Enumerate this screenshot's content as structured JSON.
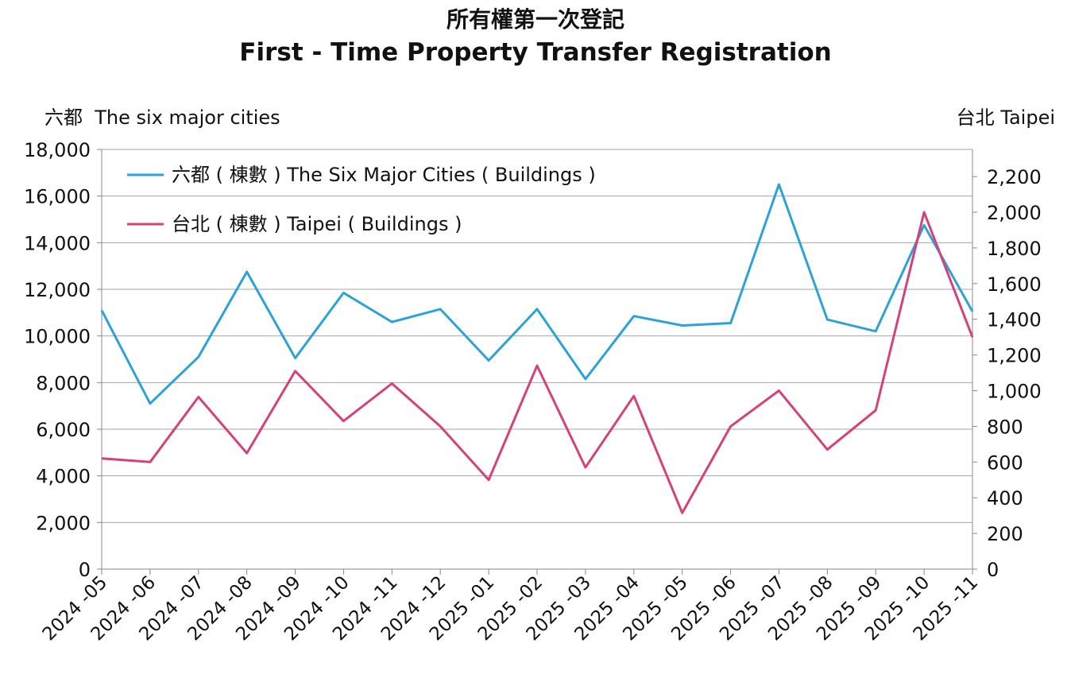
{
  "chart_data": {
    "type": "line",
    "title": "所有權第一次登記",
    "subtitle": "First - Time Property Transfer Registration",
    "left_axis_label": "六都  The six major cities",
    "right_axis_label": "台北 Taipei",
    "x": [
      "2024 -05",
      "2024 -06",
      "2024 -07",
      "2024 -08",
      "2024 -09",
      "2024 -10",
      "2024 -11",
      "2024 -12",
      "2025 -01",
      "2025 -02",
      "2025 -03",
      "2025 -04",
      "2025 -05",
      "2025 -06",
      "2025 -07",
      "2025 -08",
      "2025 -09",
      "2025 -10",
      "2025 -11"
    ],
    "left_ylim": [
      0,
      18000
    ],
    "left_ticks": [
      0,
      2000,
      4000,
      6000,
      8000,
      10000,
      12000,
      14000,
      16000,
      18000
    ],
    "left_tick_labels": [
      "0",
      "2,000",
      "4,000",
      "6,000",
      "8,000",
      "10,000",
      "12,000",
      "14,000",
      "16,000",
      "18,000"
    ],
    "right_ylim": [
      0,
      2352
    ],
    "right_ticks": [
      0,
      200,
      400,
      600,
      800,
      1000,
      1200,
      1400,
      1600,
      1800,
      2000,
      2200
    ],
    "right_tick_labels": [
      "0",
      "200",
      "400",
      "600",
      "800",
      "1,000",
      "1,200",
      "1,400",
      "1,600",
      "1,800",
      "2,000",
      "2,200"
    ],
    "grid": true,
    "legend_position": "top-left",
    "series": [
      {
        "name": "六都 ( 棟數 ) The Six Major Cities ( Buildings )",
        "axis": "left",
        "color": "#2ba3d6",
        "values": [
          11100,
          7100,
          9100,
          12750,
          9050,
          11850,
          10600,
          11150,
          8950,
          11150,
          8150,
          10850,
          10450,
          10550,
          16500,
          10700,
          10200,
          14750,
          11050
        ]
      },
      {
        "name": "台北 ( 棟數 ) Taipei ( Buildings )",
        "axis": "right",
        "color": "#d4417c",
        "values": [
          620,
          600,
          965,
          650,
          1110,
          830,
          1040,
          800,
          500,
          1140,
          570,
          970,
          315,
          800,
          1000,
          670,
          890,
          2000,
          1300
        ]
      }
    ]
  }
}
